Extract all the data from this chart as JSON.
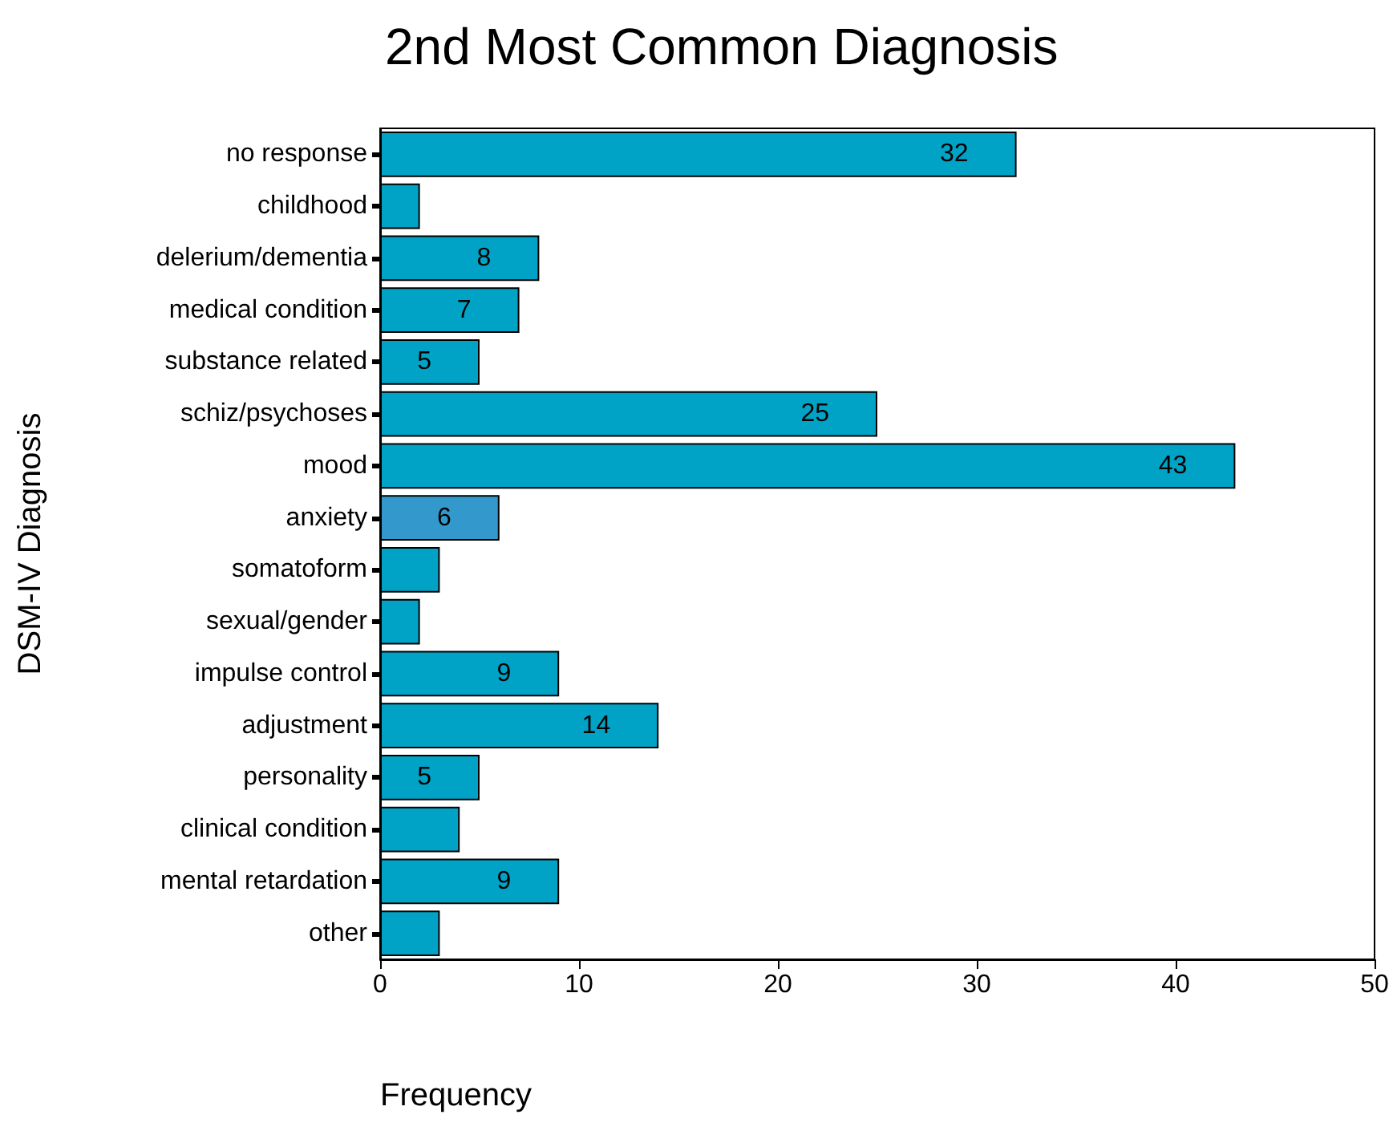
{
  "chart_data": {
    "type": "bar",
    "orientation": "horizontal",
    "title": "2nd Most Common Diagnosis",
    "xlabel": "Frequency",
    "ylabel": "DSM-IV Diagnosis",
    "categories": [
      "no response",
      "childhood",
      "delerium/dementia",
      "medical condition",
      "substance related",
      "schiz/psychoses",
      "mood",
      "anxiety",
      "somatoform",
      "sexual/gender",
      "impulse control",
      "adjustment",
      "personality",
      "clinical condition",
      "mental retardation",
      "other"
    ],
    "values": [
      32,
      2,
      8,
      7,
      5,
      25,
      43,
      6,
      3,
      2,
      9,
      14,
      5,
      4,
      9,
      3
    ],
    "value_labels": [
      "32",
      null,
      "8",
      "7",
      "5",
      "25",
      "43",
      "6",
      null,
      null,
      "9",
      "14",
      "5",
      null,
      "9",
      null
    ],
    "colors": [
      "#00a3c6",
      "#00a3c6",
      "#00a3c6",
      "#00a3c6",
      "#00a3c6",
      "#00a3c6",
      "#00a3c6",
      "#3399cc",
      "#00a3c6",
      "#00a3c6",
      "#00a3c6",
      "#00a3c6",
      "#00a3c6",
      "#00a3c6",
      "#00a3c6",
      "#00a3c6"
    ],
    "xlim": [
      0,
      50
    ],
    "xticks": [
      0,
      10,
      20,
      30,
      40,
      50
    ]
  }
}
